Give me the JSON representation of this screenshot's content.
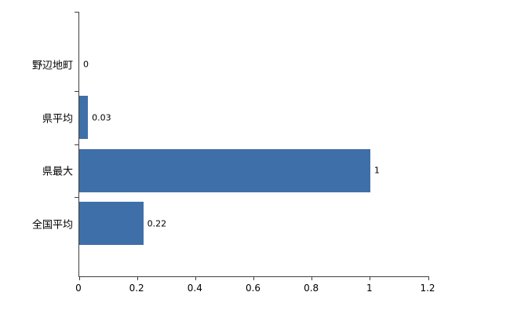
{
  "chart_data": {
    "type": "bar",
    "orientation": "horizontal",
    "title": "",
    "categories": [
      "野辺地町",
      "県平均",
      "県最大",
      "全国平均"
    ],
    "values": [
      0,
      0.03,
      1,
      0.22
    ],
    "value_labels": [
      "0",
      "0.03",
      "1",
      "0.22"
    ],
    "x_ticks": [
      0,
      0.2,
      0.4,
      0.6,
      0.8,
      1,
      1.2
    ],
    "x_tick_labels": [
      "0",
      "0.2",
      "0.4",
      "0.6",
      "0.8",
      "1",
      "1.2"
    ],
    "xlim": [
      0,
      1.2
    ],
    "xlabel": "",
    "ylabel": "",
    "grid": false,
    "legend": "none",
    "bar_color": "#3f6fa8",
    "axis_color": "#3f3f3f",
    "text_color": "#000000"
  }
}
